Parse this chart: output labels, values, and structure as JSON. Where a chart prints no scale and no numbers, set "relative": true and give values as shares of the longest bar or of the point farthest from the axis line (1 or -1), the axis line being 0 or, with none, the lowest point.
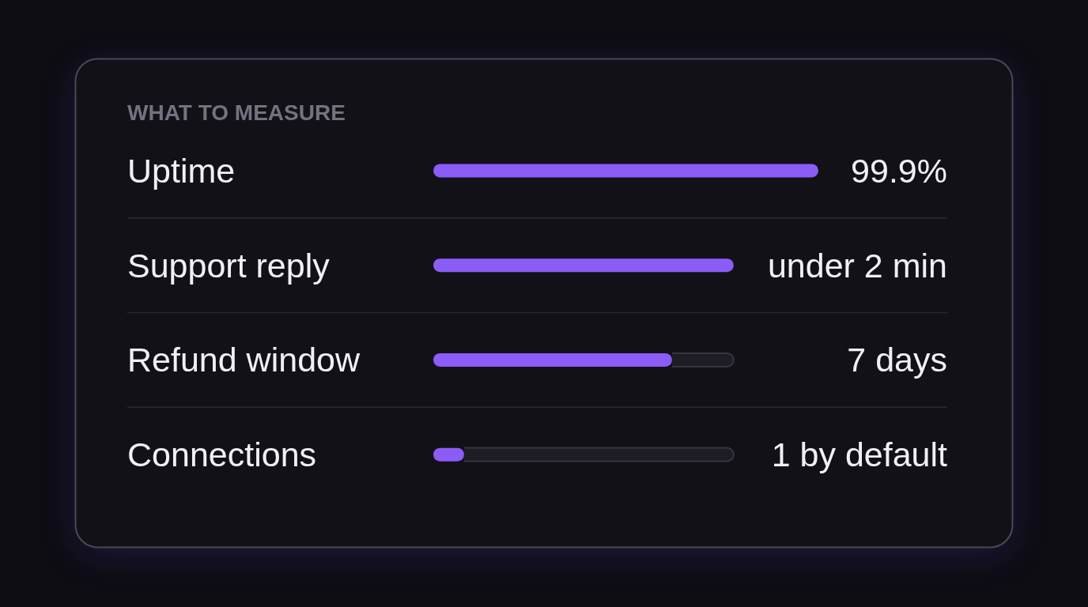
{
  "chart_data": {
    "type": "bar",
    "orientation": "horizontal",
    "stacked": true,
    "relative": true,
    "title": "WHAT TO MEASURE",
    "categories": [
      "Uptime",
      "Support reply",
      "Refund window",
      "Connections"
    ],
    "series": [
      {
        "color": "#8b5cf6",
        "values": [
          1,
          0.78,
          0.62,
          0.08
        ]
      },
      {
        "color": "#1e1d25",
        "values": [
          null,
          null,
          0.16,
          0.7
        ]
      }
    ],
    "annotations": [
      "99.9%",
      "under 2 min",
      "7 days",
      "1 by default"
    ],
    "grid": "y"
  }
}
